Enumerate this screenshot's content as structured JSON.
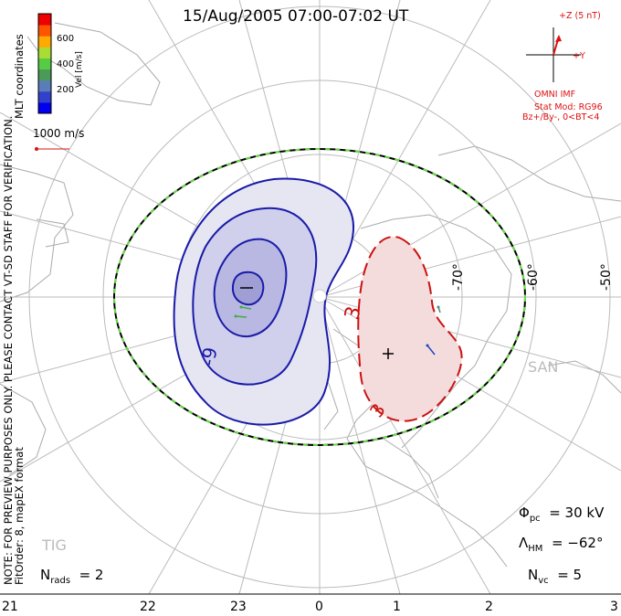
{
  "title": "15/Aug/2005 07:00-07:02 UT",
  "colorbar": {
    "label": "Vel [m/s]",
    "ticks": [
      "600",
      "400",
      "200"
    ],
    "colors": [
      "#0000ee",
      "#3340cc",
      "#5a7dba",
      "#4a9a5a",
      "#55cc44",
      "#aadd33",
      "#ffaa00",
      "#ff5500",
      "#ee0000"
    ]
  },
  "coords_label": "MLT coordinates",
  "vector_scale": "1000 m/s",
  "imf": {
    "z_label": "+Z (5 nT)",
    "y_label": "+Y",
    "title": "OMNI IMF",
    "stat_mod": "Stat Mod: RG96",
    "condition": "Bz+/By-, 0<BT<4"
  },
  "notice": "NOTE: FOR PREVIEW PURPOSES ONLY. PLEASE CONTACT VT-SD STAFF FOR VERIFICATION.",
  "fit_info": "FitOrder: 8, mapEX format",
  "latitudes": [
    "-70°",
    "-60°",
    "-50°"
  ],
  "station_labels": [
    "SAN",
    "TIG"
  ],
  "contour_labels": {
    "negative": "-9",
    "positive": "3",
    "positive2": "3"
  },
  "potential_marks": {
    "min": "–",
    "max": "+"
  },
  "stats": {
    "phi_symbol": "Φ",
    "phi_sub": "pc",
    "phi_value": "= 30 kV",
    "lambda_symbol": "Λ",
    "lambda_sub": "HM",
    "lambda_value": "= −62°",
    "nrads_symbol": "N",
    "nrads_sub": "rads",
    "nrads_value": "= 2",
    "nvc_symbol": "N",
    "nvc_sub": "vc",
    "nvc_value": "= 5"
  },
  "mlt_axis": [
    "21",
    "22",
    "23",
    "0",
    "1",
    "2",
    "3"
  ]
}
